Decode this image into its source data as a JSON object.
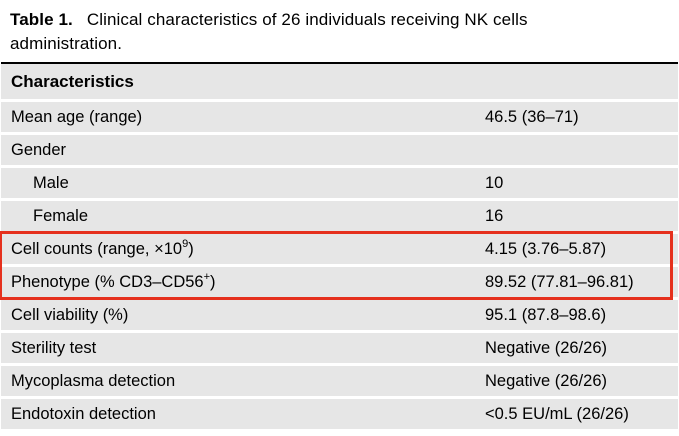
{
  "title": {
    "label": "Table 1.",
    "text": "Clinical characteristics of 26 individuals receiving NK cells administration."
  },
  "table": {
    "header": "Characteristics",
    "rows": [
      {
        "label": "Mean age (range)",
        "sup": "",
        "tail": "",
        "value": "46.5 (36–71)",
        "indent": false,
        "boxed": false
      },
      {
        "label": "Gender",
        "sup": "",
        "tail": "",
        "value": "",
        "indent": false,
        "boxed": false
      },
      {
        "label": "Male",
        "sup": "",
        "tail": "",
        "value": "10",
        "indent": true,
        "boxed": false
      },
      {
        "label": "Female",
        "sup": "",
        "tail": "",
        "value": "16",
        "indent": true,
        "boxed": false
      },
      {
        "label": "Cell counts (range, ×10",
        "sup": "9",
        "tail": ")",
        "value": "4.15 (3.76–5.87)",
        "indent": false,
        "boxed": true
      },
      {
        "label": "Phenotype (% CD3–CD56",
        "sup": "+",
        "tail": ")",
        "value": "89.52 (77.81–96.81)",
        "indent": false,
        "boxed": true
      },
      {
        "label": "Cell viability (%)",
        "sup": "",
        "tail": "",
        "value": "95.1 (87.8–98.6)",
        "indent": false,
        "boxed": false
      },
      {
        "label": "Sterility test",
        "sup": "",
        "tail": "",
        "value": "Negative (26/26)",
        "indent": false,
        "boxed": false
      },
      {
        "label": "Mycoplasma detection",
        "sup": "",
        "tail": "",
        "value": "Negative (26/26)",
        "indent": false,
        "boxed": false
      },
      {
        "label": "Endotoxin detection",
        "sup": "",
        "tail": "",
        "value": "<0.5 EU/mL (26/26)",
        "indent": false,
        "boxed": false
      }
    ]
  },
  "annotation": {
    "box_color": "#e5301d",
    "row_bg": "#e6e6e6"
  }
}
